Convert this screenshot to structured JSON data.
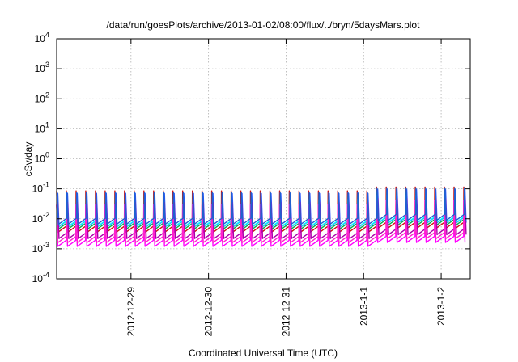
{
  "chart_data": {
    "type": "line",
    "title": "/data/run/goesPlots/archive/2013-01-02/08:00/flux/../bryn/5daysMars.plot",
    "xlabel": "Coordinated Universal Time (UTC)",
    "ylabel": "cSv/day",
    "y_scale": "log",
    "ylim": [
      0.0001,
      10000
    ],
    "y_ticks": [
      {
        "value": 0.0001,
        "base": "10",
        "exp": "-4"
      },
      {
        "value": 0.001,
        "base": "10",
        "exp": "-3"
      },
      {
        "value": 0.01,
        "base": "10",
        "exp": "-2"
      },
      {
        "value": 0.1,
        "base": "10",
        "exp": "-1"
      },
      {
        "value": 1,
        "base": "10",
        "exp": "0"
      },
      {
        "value": 10,
        "base": "10",
        "exp": "1"
      },
      {
        "value": 100,
        "base": "10",
        "exp": "2"
      },
      {
        "value": 1000,
        "base": "10",
        "exp": "3"
      },
      {
        "value": 10000,
        "base": "10",
        "exp": "4"
      }
    ],
    "xlim": [
      "2012-12-28 01:00",
      "2013-01-02 09:00"
    ],
    "x_ticks": [
      {
        "value": "2012-12-29 00:00",
        "label": "2012-12-29"
      },
      {
        "value": "2012-12-30 00:00",
        "label": "2012-12-30"
      },
      {
        "value": "2012-12-31 00:00",
        "label": "2012-12-31"
      },
      {
        "value": "2013-01-01 00:00",
        "label": "2013-1-1"
      },
      {
        "value": "2013-01-02 00:00",
        "label": "2013-1-2"
      }
    ],
    "grid": true,
    "pattern": {
      "description_note": "sawtooth orbital modulation",
      "period_hours": 3.0,
      "peak_multipliers_before_2013_01_01_02h": 1.0,
      "peak_multipliers_after_2013_01_01_02h": 1.35
    },
    "series": [
      {
        "color": "#cc1111",
        "peak": 0.085,
        "trough": 0.0035
      },
      {
        "color": "#00b050",
        "peak": 0.06,
        "trough": 0.0045
      },
      {
        "color": "#2a55ff",
        "peak": 0.07,
        "trough": 0.0055
      },
      {
        "color": "#ff00ff",
        "peak": 0.03,
        "trough": 0.0012
      },
      {
        "color": "#00ffff",
        "peak": 0.045,
        "trough": 0.0055
      },
      {
        "color": "#aa00aa",
        "peak": 0.035,
        "trough": 0.0022
      },
      {
        "color": "#ff22cc",
        "peak": 0.028,
        "trough": 0.0016
      },
      {
        "color": "#2060d0",
        "peak": 0.075,
        "trough": 0.0065
      }
    ]
  }
}
